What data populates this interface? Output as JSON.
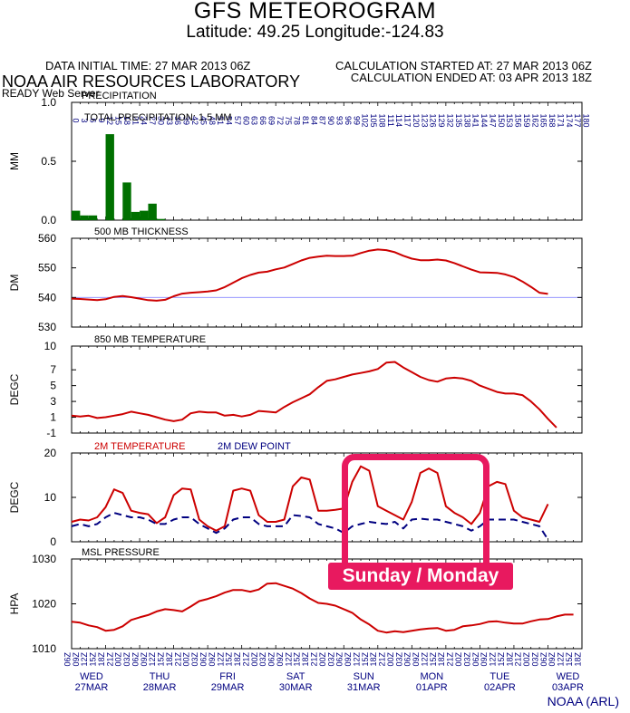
{
  "header": {
    "title": "GFS METEOROGRAM",
    "subtitle": "Latitude: 49.25 Longitude:-124.83",
    "data_initial": "DATA INITIAL TIME: 27 MAR 2013 06Z",
    "calc_started": "CALCULATION STARTED AT: 27 MAR 2013 06Z",
    "calc_ended": "CALCULATION ENDED AT: 03 APR 2013 18Z",
    "lab": "NOAA AIR RESOURCES LABORATORY",
    "server": "READY Web Server"
  },
  "footer": {
    "credit": "NOAA (ARL)"
  },
  "callout": {
    "label": "Sunday / Monday",
    "color": "#e8195f"
  },
  "chart_data": {
    "type": "line",
    "forecast_hours": [
      "0",
      "3",
      "6",
      "9",
      "12",
      "15",
      "18",
      "21",
      "24",
      "27",
      "30",
      "33",
      "36",
      "39",
      "42",
      "45",
      "48",
      "51",
      "54",
      "57",
      "60",
      "63",
      "66",
      "69",
      "72",
      "75",
      "78",
      "81",
      "84",
      "87",
      "90",
      "93",
      "96",
      "99",
      "102",
      "105",
      "108",
      "111",
      "114",
      "117",
      "120",
      "123",
      "126",
      "129",
      "132",
      "135",
      "138",
      "141",
      "144",
      "147",
      "150",
      "153",
      "156",
      "159",
      "162",
      "165",
      "168",
      "171",
      "174",
      "177",
      "180"
    ],
    "bottom_ticks": [
      "06Z",
      "09Z",
      "12Z",
      "15Z",
      "18Z",
      "21Z",
      "00Z",
      "03Z",
      "06Z",
      "09Z",
      "12Z",
      "15Z",
      "18Z",
      "21Z",
      "00Z",
      "03Z",
      "06Z",
      "09Z",
      "12Z",
      "15Z",
      "18Z",
      "21Z",
      "00Z",
      "03Z",
      "06Z",
      "09Z",
      "12Z",
      "15Z",
      "18Z",
      "21Z",
      "00Z",
      "03Z",
      "06Z",
      "09Z",
      "12Z",
      "15Z",
      "18Z",
      "21Z",
      "00Z",
      "03Z",
      "06Z",
      "09Z",
      "12Z",
      "15Z",
      "18Z",
      "21Z",
      "00Z",
      "03Z",
      "06Z",
      "09Z",
      "12Z",
      "15Z",
      "18Z",
      "21Z",
      "00Z",
      "03Z",
      "06Z",
      "09Z",
      "12Z",
      "15Z",
      "18Z"
    ],
    "days": [
      {
        "day": "WED",
        "date": "27MAR",
        "hour": 0
      },
      {
        "day": "THU",
        "date": "28MAR",
        "hour": 24
      },
      {
        "day": "FRI",
        "date": "29MAR",
        "hour": 48
      },
      {
        "day": "SAT",
        "date": "30MAR",
        "hour": 72
      },
      {
        "day": "SUN",
        "date": "31MAR",
        "hour": 96
      },
      {
        "day": "MON",
        "date": "01APR",
        "hour": 120
      },
      {
        "day": "TUE",
        "date": "02APR",
        "hour": 144
      },
      {
        "day": "WED",
        "date": "03APR",
        "hour": 168
      }
    ],
    "colors": {
      "frame": "#000000",
      "red": "#cc0000",
      "blue": "#000080",
      "green": "#007000",
      "grid": "#8888ff"
    },
    "panels": [
      {
        "id": "precip",
        "type": "bar",
        "title": "PRECIPITATION",
        "ylabel": "MM",
        "annotation": "TOTAL PRECIPITATION:   1.5 MM",
        "ylim": [
          0,
          1.0
        ],
        "yticks": [
          "0.0",
          "0.5",
          "1.0"
        ],
        "ytick_values": [
          0,
          0.5,
          1.0
        ],
        "grid": [],
        "bars": [
          {
            "hour": 0,
            "value": 0.08
          },
          {
            "hour": 3,
            "value": 0.04
          },
          {
            "hour": 6,
            "value": 0.04
          },
          {
            "hour": 12,
            "value": 0.73
          },
          {
            "hour": 18,
            "value": 0.32
          },
          {
            "hour": 21,
            "value": 0.07
          },
          {
            "hour": 24,
            "value": 0.08
          },
          {
            "hour": 27,
            "value": 0.14
          },
          {
            "hour": 30,
            "value": 0.01
          }
        ]
      },
      {
        "id": "thickness",
        "type": "line",
        "title": "500 MB  THICKNESS",
        "ylabel": "DM",
        "ylim": [
          530,
          560
        ],
        "yticks": [
          "530",
          "540",
          "550",
          "560"
        ],
        "ytick_values": [
          530,
          540,
          550,
          560
        ],
        "grid": [
          540
        ],
        "series": [
          {
            "color": "#cc0000",
            "dashed": false,
            "values": [
              539.6,
              539.5,
              539.3,
              539.1,
              539.4,
              540.2,
              540.5,
              540.1,
              539.6,
              539.1,
              538.9,
              539.2,
              540.4,
              541.3,
              541.6,
              541.8,
              542.0,
              542.4,
              543.5,
              545.0,
              546.5,
              547.6,
              548.4,
              548.7,
              549.5,
              550.1,
              551.3,
              552.5,
              553.4,
              553.8,
              554.1,
              554.0,
              554.0,
              554.1,
              555.0,
              555.8,
              556.2,
              556.0,
              555.3,
              554.1,
              553.1,
              552.6,
              552.6,
              552.8,
              552.5,
              551.6,
              550.5,
              549.4,
              548.5,
              548.4,
              548.3,
              547.8,
              546.9,
              545.4,
              543.6,
              541.6,
              541.2
            ]
          }
        ]
      },
      {
        "id": "t850",
        "type": "line",
        "title": "850 MB  TEMPERATURE",
        "ylabel": "DEGC",
        "ylim": [
          -1,
          10
        ],
        "yticks": [
          "-1",
          "1",
          "3",
          "5",
          "7",
          "10"
        ],
        "ytick_values": [
          -1,
          1,
          3,
          5,
          7,
          10
        ],
        "grid": [],
        "series": [
          {
            "color": "#cc0000",
            "dashed": false,
            "values": [
              1.2,
              1.1,
              1.2,
              0.9,
              1.0,
              1.2,
              1.4,
              1.7,
              1.5,
              1.3,
              1.0,
              0.7,
              0.5,
              0.7,
              1.5,
              1.7,
              1.6,
              1.6,
              1.2,
              1.3,
              1.1,
              1.3,
              1.8,
              1.7,
              1.6,
              2.3,
              2.9,
              3.4,
              3.9,
              4.8,
              5.6,
              5.8,
              6.1,
              6.4,
              6.6,
              6.8,
              7.1,
              7.9,
              8.0,
              7.3,
              6.7,
              6.1,
              5.7,
              5.5,
              5.9,
              6.0,
              5.9,
              5.6,
              5.0,
              4.6,
              4.2,
              4.0,
              4.0,
              3.8,
              3.0,
              2.0,
              0.8,
              -0.3
            ]
          }
        ]
      },
      {
        "id": "t2m",
        "type": "line",
        "title": "2M TEMPERATURE",
        "title2": "2M  DEW POINT",
        "ylabel": "DEGC",
        "ylim": [
          0,
          20
        ],
        "yticks": [
          "0",
          "10",
          "20"
        ],
        "ytick_values": [
          0,
          10,
          20
        ],
        "grid": [],
        "series": [
          {
            "name": "2M TEMPERATURE",
            "color": "#cc0000",
            "dashed": false,
            "values": [
              4.5,
              5.0,
              4.8,
              5.5,
              7.8,
              11.8,
              11.0,
              7.0,
              6.5,
              6.2,
              4.2,
              5.5,
              10.5,
              12.0,
              11.8,
              5.0,
              3.5,
              2.5,
              3.5,
              11.5,
              12.0,
              11.5,
              6.0,
              4.5,
              4.5,
              5.0,
              12.5,
              14.5,
              14.0,
              7.0,
              7.0,
              7.2,
              7.5,
              13.5,
              17.0,
              16.0,
              8.0,
              7.0,
              6.0,
              5.0,
              9.0,
              15.5,
              16.5,
              15.5,
              8.0,
              6.5,
              5.5,
              4.0,
              6.5,
              12.5,
              13.5,
              13.0,
              7.0,
              5.5,
              5.0,
              4.5,
              8.5
            ]
          },
          {
            "name": "2M  DEW POINT",
            "color": "#000080",
            "dashed": true,
            "values": [
              3.5,
              4.0,
              3.5,
              4.0,
              5.5,
              6.5,
              6.0,
              5.5,
              5.5,
              5.0,
              4.0,
              4.0,
              5.0,
              5.5,
              5.5,
              4.0,
              3.0,
              2.0,
              3.0,
              5.0,
              5.5,
              5.5,
              4.0,
              3.5,
              3.5,
              3.5,
              6.0,
              5.8,
              5.5,
              4.0,
              3.5,
              3.0,
              2.0,
              3.5,
              4.0,
              4.5,
              4.2,
              4.0,
              4.5,
              3.0,
              5.0,
              5.2,
              5.0,
              5.0,
              4.5,
              4.0,
              3.5,
              2.5,
              3.5,
              5.0,
              5.0,
              5.0,
              5.0,
              4.5,
              4.0,
              3.5,
              0.5
            ]
          }
        ]
      },
      {
        "id": "mslp",
        "type": "line",
        "title": "MSL PRESSURE",
        "ylabel": "HPA",
        "ylim": [
          1010,
          1030
        ],
        "yticks": [
          "1010",
          "1020",
          "1030"
        ],
        "ytick_values": [
          1010,
          1020,
          1030
        ],
        "grid": [],
        "series": [
          {
            "color": "#cc0000",
            "dashed": false,
            "values": [
              1016.0,
              1015.8,
              1015.2,
              1014.8,
              1014.0,
              1014.2,
              1015.0,
              1016.4,
              1017.0,
              1017.5,
              1018.3,
              1018.8,
              1018.6,
              1018.3,
              1019.4,
              1020.6,
              1021.1,
              1021.7,
              1022.5,
              1023.1,
              1023.1,
              1022.7,
              1023.2,
              1024.5,
              1024.6,
              1024.0,
              1023.4,
              1022.4,
              1021.2,
              1020.2,
              1020.0,
              1019.6,
              1018.8,
              1018.0,
              1016.5,
              1015.4,
              1014.0,
              1013.6,
              1013.9,
              1013.7,
              1014.0,
              1014.3,
              1014.5,
              1014.6,
              1014.0,
              1014.2,
              1015.0,
              1015.2,
              1015.5,
              1016.0,
              1016.1,
              1015.8,
              1015.6,
              1015.6,
              1016.1,
              1016.5,
              1016.6,
              1017.2,
              1017.6,
              1017.6
            ]
          }
        ]
      }
    ]
  }
}
